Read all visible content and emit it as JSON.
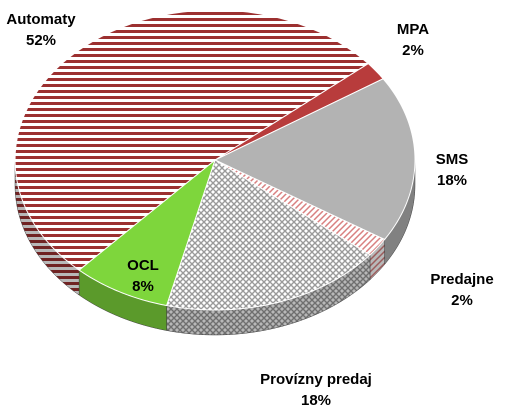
{
  "chart_data": {
    "type": "pie",
    "categories": [
      "MPA",
      "SMS",
      "Predajne",
      "Provízny predaj",
      "OCL",
      "Automaty"
    ],
    "values": [
      2,
      18,
      2,
      18,
      8,
      52
    ],
    "value_labels": [
      "2%",
      "18%",
      "2%",
      "18%",
      "8%",
      "52%"
    ],
    "colors": [
      "#b83c3c",
      "#b3b3b3",
      "#d98080",
      "#9a9a9a",
      "#7ed63c",
      "#9c3030"
    ],
    "patterns": [
      "solid",
      "solid",
      "diagonal",
      "crosshatch",
      "solid",
      "stripes"
    ]
  }
}
